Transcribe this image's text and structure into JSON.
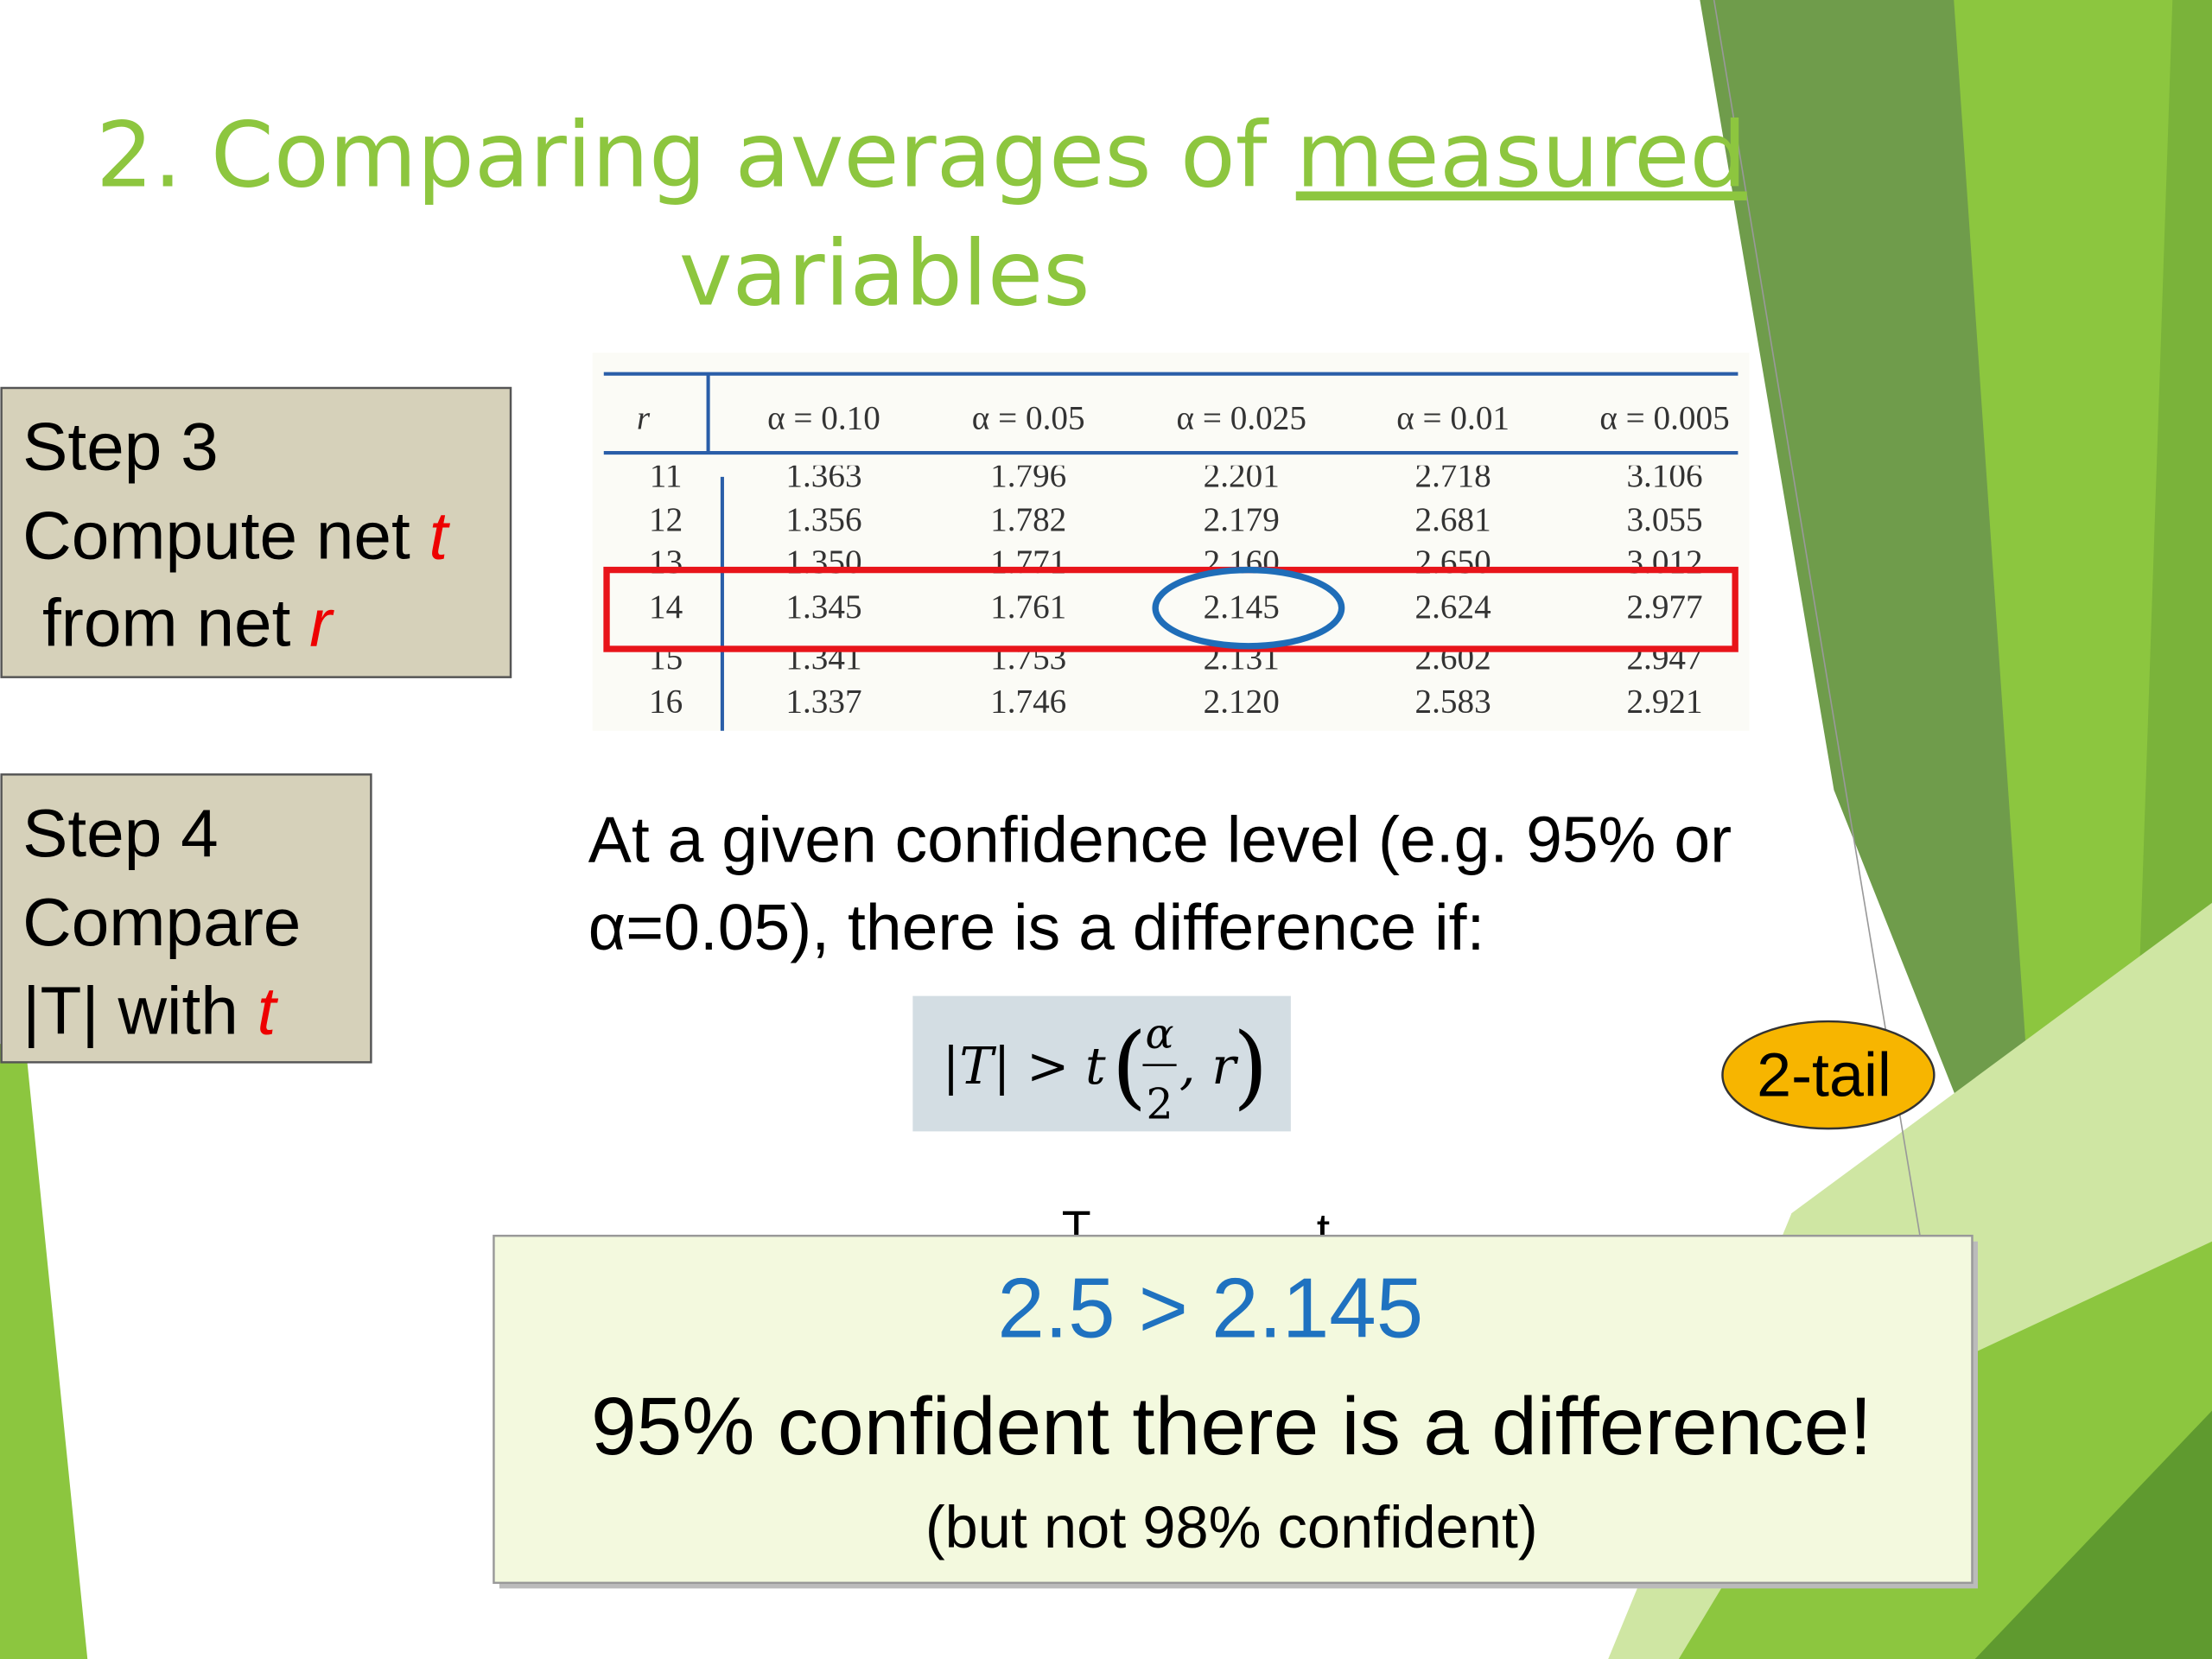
{
  "title": {
    "line1": "2. Comparing averages of ",
    "underlined": "measured",
    "line2": "variables"
  },
  "step3": {
    "heading": "Step 3",
    "line1": "Compute net ",
    "line1_symbol": "t",
    "line2": "from net ",
    "line2_symbol": "r"
  },
  "table": {
    "header": [
      "r",
      "α = 0.10",
      "α = 0.05",
      "α = 0.025",
      "α = 0.01",
      "α = 0.005"
    ],
    "rows": [
      [
        "11",
        "1.363",
        "1.796",
        "2.201",
        "2.718",
        "3.106"
      ],
      [
        "12",
        "1.356",
        "1.782",
        "2.179",
        "2.681",
        "3.055"
      ],
      [
        "13",
        "1.350",
        "1.771",
        "2.160",
        "2.650",
        "3.012"
      ],
      [
        "14",
        "1.345",
        "1.761",
        "2.145",
        "2.624",
        "2.977"
      ],
      [
        "15",
        "1.341",
        "1.753",
        "2.131",
        "2.602",
        "2.947"
      ],
      [
        "16",
        "1.337",
        "1.746",
        "2.120",
        "2.583",
        "2.921"
      ]
    ]
  },
  "step4": {
    "heading": "Step 4",
    "line1": "Compare",
    "line2": "|T| with ",
    "line2_symbol": "t"
  },
  "paragraph": {
    "line1": "At a given confidence level (e.g. 95% or",
    "line2": "α=0.05), there is a difference if:"
  },
  "formula": {
    "lhs": "|T| > t",
    "open": "(",
    "numerator": "α",
    "denominator": "2",
    "rest": ", r",
    "close": ")"
  },
  "badge": "2-tail",
  "labels": {
    "left": "T",
    "right": "t"
  },
  "conclusion": {
    "comparison": "2.5 > 2.145",
    "statement": "95% confident there is a difference!",
    "note": "(but not 98% confident)"
  }
}
